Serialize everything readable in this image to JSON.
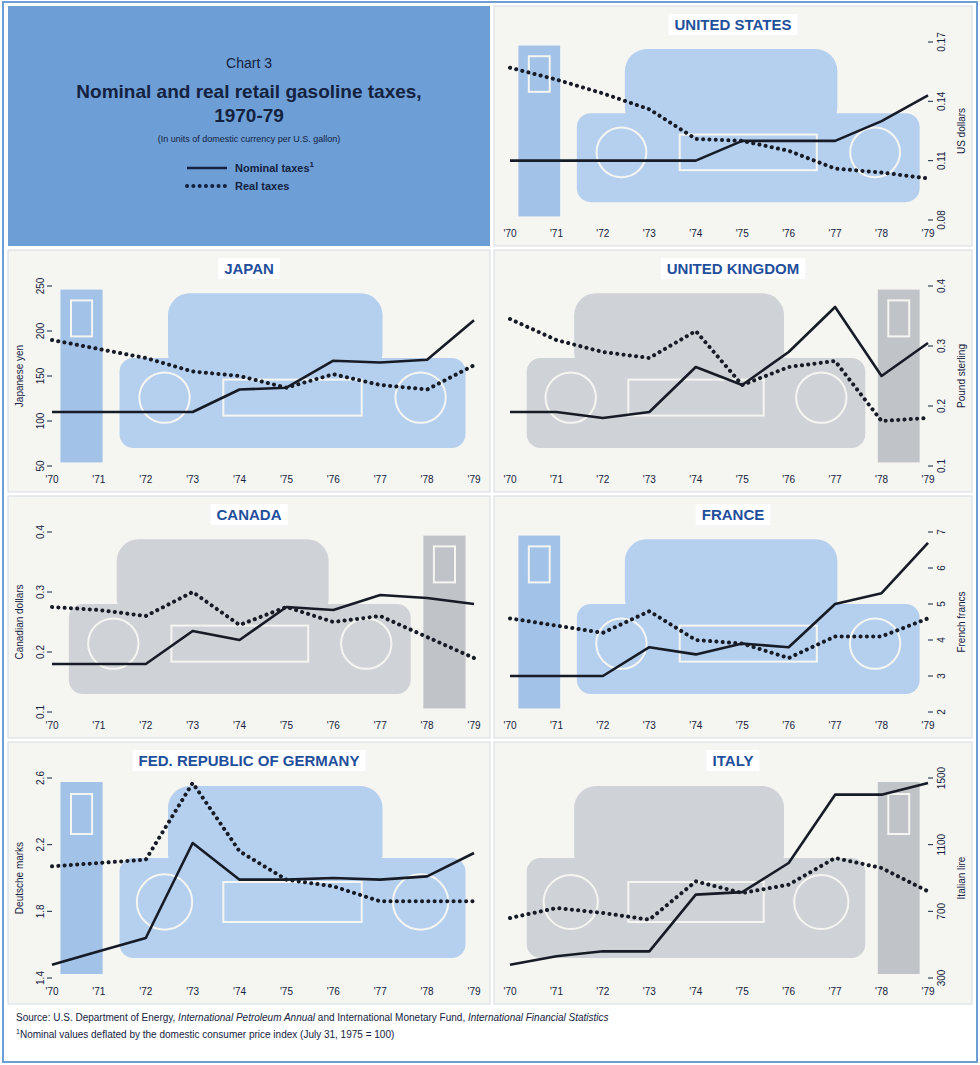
{
  "header": {
    "label": "Chart 3",
    "title": "Nominal and real retail gasoline taxes, 1970-79",
    "subtitle": "(In units of domestic currency per U.S. gallon)",
    "key": [
      {
        "label": "Nominal taxes",
        "mark": "1",
        "line_style": "solid"
      },
      {
        "label": "Real taxes",
        "line_style": "dotted"
      }
    ]
  },
  "chart_data": [
    {
      "type": "line",
      "title": "UNITED STATES",
      "y_label": "US dollars",
      "categories": [
        "'70",
        "'71",
        "'72",
        "'73",
        "'74",
        "'75",
        "'76",
        "'77",
        "'78",
        "'79"
      ],
      "ylim": [
        0.08,
        0.17
      ],
      "yticks": [
        0.08,
        0.11,
        0.14,
        0.17
      ],
      "grid": false,
      "series": [
        {
          "color": "#161b26",
          "line_style": "solid",
          "values": [
            0.11,
            0.11,
            0.11,
            0.11,
            0.11,
            0.12,
            0.12,
            0.12,
            0.13,
            0.143
          ]
        },
        {
          "color": "#161b26",
          "line_style": "dotted",
          "values": [
            0.157,
            0.151,
            0.144,
            0.136,
            0.121,
            0.12,
            0.115,
            0.106,
            0.104,
            0.101
          ]
        }
      ]
    },
    {
      "type": "line",
      "title": "JAPAN",
      "y_label": "Japanese yen",
      "categories": [
        "'70",
        "'71",
        "'72",
        "'73",
        "'74",
        "'75",
        "'76",
        "'77",
        "'78",
        "'79"
      ],
      "ylim": [
        50,
        250
      ],
      "yticks": [
        50,
        100,
        150,
        200,
        250
      ],
      "grid": false,
      "series": [
        {
          "color": "#161b26",
          "line_style": "solid",
          "values": [
            110,
            110,
            110,
            110,
            135,
            137,
            167,
            165,
            168,
            212
          ]
        },
        {
          "color": "#161b26",
          "line_style": "dotted",
          "values": [
            190,
            180,
            170,
            155,
            150,
            137,
            152,
            140,
            135,
            162
          ]
        }
      ]
    },
    {
      "type": "line",
      "title": "UNITED KINGDOM",
      "y_label": "Pound sterling",
      "categories": [
        "'70",
        "'71",
        "'72",
        "'73",
        "'74",
        "'75",
        "'76",
        "'77",
        "'78",
        "'79"
      ],
      "ylim": [
        0.1,
        0.4
      ],
      "yticks": [
        0.1,
        0.2,
        0.3,
        0.4
      ],
      "grid": false,
      "series": [
        {
          "color": "#161b26",
          "line_style": "solid",
          "values": [
            0.19,
            0.19,
            0.18,
            0.19,
            0.265,
            0.235,
            0.29,
            0.365,
            0.25,
            0.305
          ]
        },
        {
          "color": "#161b26",
          "line_style": "dotted",
          "values": [
            0.345,
            0.31,
            0.29,
            0.28,
            0.325,
            0.235,
            0.265,
            0.275,
            0.175,
            0.18
          ]
        }
      ]
    },
    {
      "type": "line",
      "title": "CANADA",
      "y_label": "Canadian dollars",
      "categories": [
        "'70",
        "'71",
        "'72",
        "'73",
        "'74",
        "'75",
        "'76",
        "'77",
        "'78",
        "'79"
      ],
      "ylim": [
        0.1,
        0.4
      ],
      "yticks": [
        0.1,
        0.2,
        0.3,
        0.4
      ],
      "grid": false,
      "series": [
        {
          "color": "#161b26",
          "line_style": "solid",
          "values": [
            0.18,
            0.18,
            0.18,
            0.235,
            0.22,
            0.275,
            0.27,
            0.295,
            0.29,
            0.28
          ]
        },
        {
          "color": "#161b26",
          "line_style": "dotted",
          "values": [
            0.275,
            0.27,
            0.26,
            0.3,
            0.245,
            0.275,
            0.25,
            0.26,
            0.225,
            0.19
          ]
        }
      ]
    },
    {
      "type": "line",
      "title": "FRANCE",
      "y_label": "French francs",
      "categories": [
        "'70",
        "'71",
        "'72",
        "'73",
        "'74",
        "'75",
        "'76",
        "'77",
        "'78",
        "'79"
      ],
      "ylim": [
        2,
        7
      ],
      "yticks": [
        2,
        3,
        4,
        5,
        6,
        7
      ],
      "grid": false,
      "series": [
        {
          "color": "#161b26",
          "line_style": "solid",
          "values": [
            3.0,
            3.0,
            3.0,
            3.8,
            3.6,
            3.9,
            3.8,
            5.0,
            5.3,
            6.7
          ]
        },
        {
          "color": "#161b26",
          "line_style": "dotted",
          "values": [
            4.6,
            4.4,
            4.2,
            4.8,
            4.0,
            3.9,
            3.5,
            4.1,
            4.1,
            4.6
          ]
        }
      ]
    },
    {
      "type": "line",
      "title": "FED. REPUBLIC OF GERMANY",
      "y_label": "Deutsche marks",
      "categories": [
        "'70",
        "'71",
        "'72",
        "'73",
        "'74",
        "'75",
        "'76",
        "'77",
        "'78",
        "'79"
      ],
      "ylim": [
        1.4,
        2.6
      ],
      "yticks": [
        1.4,
        1.8,
        2.2,
        2.6
      ],
      "grid": false,
      "series": [
        {
          "color": "#161b26",
          "line_style": "solid",
          "values": [
            1.48,
            1.56,
            1.64,
            2.21,
            1.99,
            1.99,
            2.0,
            1.99,
            2.01,
            2.15
          ]
        },
        {
          "color": "#161b26",
          "line_style": "dotted",
          "values": [
            2.07,
            2.09,
            2.11,
            2.57,
            2.16,
            1.99,
            1.95,
            1.86,
            1.86,
            1.86
          ]
        }
      ]
    },
    {
      "type": "line",
      "title": "ITALY",
      "y_label": "Italian lire",
      "categories": [
        "'70",
        "'71",
        "'72",
        "'73",
        "'74",
        "'75",
        "'76",
        "'77",
        "'78",
        "'79"
      ],
      "ylim": [
        300,
        1500
      ],
      "yticks": [
        300,
        700,
        1100,
        1500
      ],
      "grid": false,
      "series": [
        {
          "color": "#161b26",
          "line_style": "solid",
          "values": [
            380,
            430,
            460,
            460,
            800,
            815,
            990,
            1400,
            1400,
            1470
          ]
        },
        {
          "color": "#161b26",
          "line_style": "dotted",
          "values": [
            660,
            720,
            690,
            650,
            880,
            810,
            860,
            1020,
            960,
            820
          ]
        }
      ]
    }
  ],
  "source": [
    {
      "text": "Source: U.S. Department of Energy, ",
      "italic": false
    },
    {
      "text": "International Petroleum Annual",
      "italic": true
    },
    {
      "text": " and International Monetary Fund, ",
      "italic": false
    },
    {
      "text": "International Financial Statistics",
      "italic": true
    }
  ],
  "footnote": {
    "mark": "1",
    "text": "Nominal values deflated by the domestic consumer price index (July 31, 1975 = 100)"
  }
}
